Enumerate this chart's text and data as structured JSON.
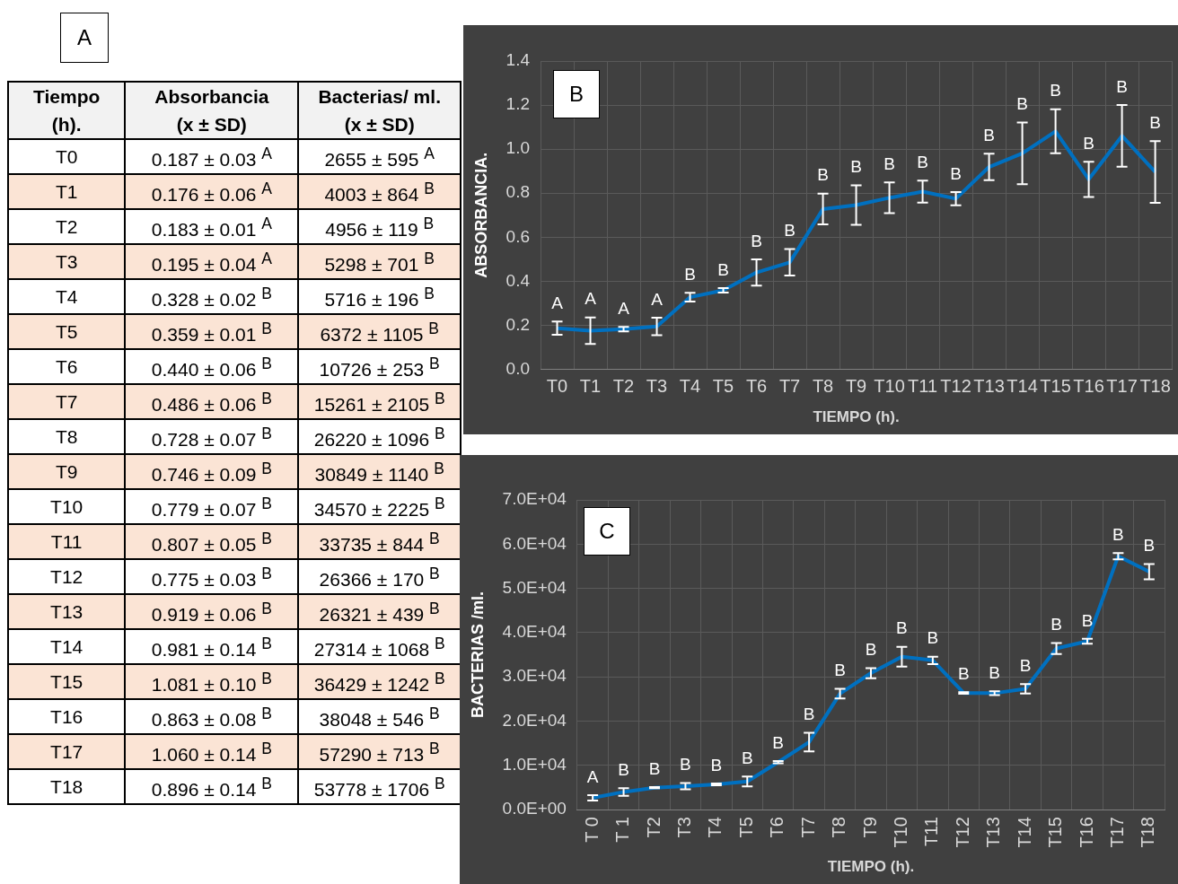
{
  "chart_data": [
    {
      "type": "other",
      "title": "A",
      "annotations": [
        "Tiempo\n(h).",
        "Absorbancia\n(x ± SD)",
        "Bacterias/ ml.\n(x ± SD)",
        "T0",
        "0.187 ± 0.03 $^{A}$",
        "2655 ± 595 $^{A}$",
        "T1",
        "0.176 ± 0.06 $^{A}$",
        "4003 ± 864 $^{B}$",
        "T2",
        "0.183 ± 0.01 $^{A}$",
        "4956 ± 119 $^{B}$",
        "T3",
        "0.195 ± 0.04 $^{A}$",
        "5298 ± 701 $^{B}$",
        "T4",
        "0.328 ± 0.02 $^{B}$",
        "5716 ± 196 $^{B}$",
        "T5",
        "0.359 ± 0.01 $^{B}$",
        "6372 ± 1105 $^{B}$",
        "T6",
        "0.440 ± 0.06 $^{B}$",
        "10726 ± 253 $^{B}$",
        "T7",
        "0.486 ± 0.06 $^{B}$",
        "15261 ± 2105 $^{B}$",
        "T8",
        "0.728 ± 0.07 $^{B}$",
        "26220 ± 1096 $^{B}$",
        "T9",
        "0.746 ± 0.09 $^{B}$",
        "30849 ± 1140 $^{B}$",
        "T10",
        "0.779 ± 0.07 $^{B}$",
        "34570 ± 2225 $^{B}$",
        "T11",
        "0.807 ± 0.05 $^{B}$",
        "33735 ± 844 $^{B}$",
        "T12",
        "0.775 ± 0.03 $^{B}$",
        "26366 ± 170 $^{B}$",
        "T13",
        "0.919 ± 0.06 $^{B}$",
        "26321 ± 439 $^{B}$",
        "T14",
        "0.981 ± 0.14 $^{B}$",
        "27314 ± 1068 $^{B}$",
        "T15",
        "1.081 ± 0.10 $^{B}$",
        "36429 ± 1242 $^{B}$",
        "T16",
        "0.863 ± 0.08 $^{B}$",
        "38048 ± 546 $^{B}$",
        "T17",
        "1.060 ± 0.14 $^{B}$",
        "57290 ± 713 $^{B}$",
        "T18",
        "0.896 ± 0.14 $^{B}$",
        "53778 ± 1706 $^{B}$"
      ]
    },
    {
      "type": "line",
      "title": "B",
      "xlabel": "TIEMPO (h).",
      "ylabel": "ABSORBANCIA.",
      "categories": [
        "T0",
        "T1",
        "T2",
        "T3",
        "T4",
        "T5",
        "T6",
        "T7",
        "T8",
        "T9",
        "T10",
        "T11",
        "T12",
        "T13",
        "T14",
        "T15",
        "T16",
        "T17",
        "T18"
      ],
      "values": [
        0.187,
        0.176,
        0.183,
        0.195,
        0.328,
        0.359,
        0.44,
        0.486,
        0.728,
        0.746,
        0.779,
        0.807,
        0.775,
        0.919,
        0.981,
        1.081,
        0.863,
        1.06,
        0.896
      ],
      "errors": [
        0.03,
        0.06,
        0.01,
        0.04,
        0.02,
        0.01,
        0.06,
        0.06,
        0.07,
        0.09,
        0.07,
        0.05,
        0.03,
        0.06,
        0.14,
        0.1,
        0.08,
        0.14,
        0.14
      ],
      "value_labels": [
        "A",
        "A",
        "A",
        "A",
        "B",
        "B",
        "B",
        "B",
        "B",
        "B",
        "B",
        "B",
        "B",
        "B",
        "B",
        "B",
        "B",
        "B",
        "B"
      ],
      "color": "#0070c0",
      "ylim": [
        0,
        1.4
      ],
      "yticks": [
        {
          "value": 0,
          "label": "0.0"
        },
        {
          "value": 0.2,
          "label": "0.2"
        },
        {
          "value": 0.4,
          "label": "0.4"
        },
        {
          "value": 0.6,
          "label": "0.6"
        },
        {
          "value": 0.8,
          "label": "0.8"
        },
        {
          "value": 1,
          "label": "1.0"
        },
        {
          "value": 1.2,
          "label": "1.2"
        },
        {
          "value": 1.4,
          "label": "1.4"
        }
      ],
      "grid": true,
      "legend": false,
      "marker": "none",
      "line_style": "solid"
    },
    {
      "type": "line",
      "title": "C",
      "xlabel": "TIEMPO (h).",
      "ylabel": "BACTERIAS /ml.",
      "categories": [
        "T 0",
        "T 1",
        "T2",
        "T3",
        "T4",
        "T5",
        "T6",
        "T7",
        "T8",
        "T9",
        "T10",
        "T11",
        "T12",
        "T13",
        "T14",
        "T15",
        "T16",
        "T17",
        "T18"
      ],
      "values": [
        2655,
        4003,
        4956,
        5298,
        5716,
        6372,
        10726,
        15261,
        26220,
        30849,
        34570,
        33735,
        26366,
        26321,
        27314,
        36429,
        38048,
        57290,
        53778
      ],
      "errors": [
        595,
        864,
        119,
        701,
        196,
        1105,
        253,
        2105,
        1096,
        1140,
        2225,
        844,
        170,
        439,
        1068,
        1242,
        546,
        713,
        1706
      ],
      "value_labels": [
        "A",
        "B",
        "B",
        "B",
        "B",
        "B",
        "B",
        "B",
        "B",
        "B",
        "B",
        "B",
        "B",
        "B",
        "B",
        "B",
        "B",
        "B",
        "B"
      ],
      "color": "#0070c0",
      "ylim": [
        0,
        70000
      ],
      "yticks": [
        {
          "value": 0,
          "label": "0.0E+00"
        },
        {
          "value": 10000,
          "label": "1.0E+04"
        },
        {
          "value": 20000,
          "label": "2.0E+04"
        },
        {
          "value": 30000,
          "label": "3.0E+04"
        },
        {
          "value": 40000,
          "label": "4.0E+04"
        },
        {
          "value": 50000,
          "label": "5.0E+04"
        },
        {
          "value": 60000,
          "label": "6.0E+04"
        },
        {
          "value": 70000,
          "label": "7.0E+04"
        }
      ],
      "grid": true,
      "legend": false,
      "marker": "none",
      "line_style": "solid"
    }
  ]
}
